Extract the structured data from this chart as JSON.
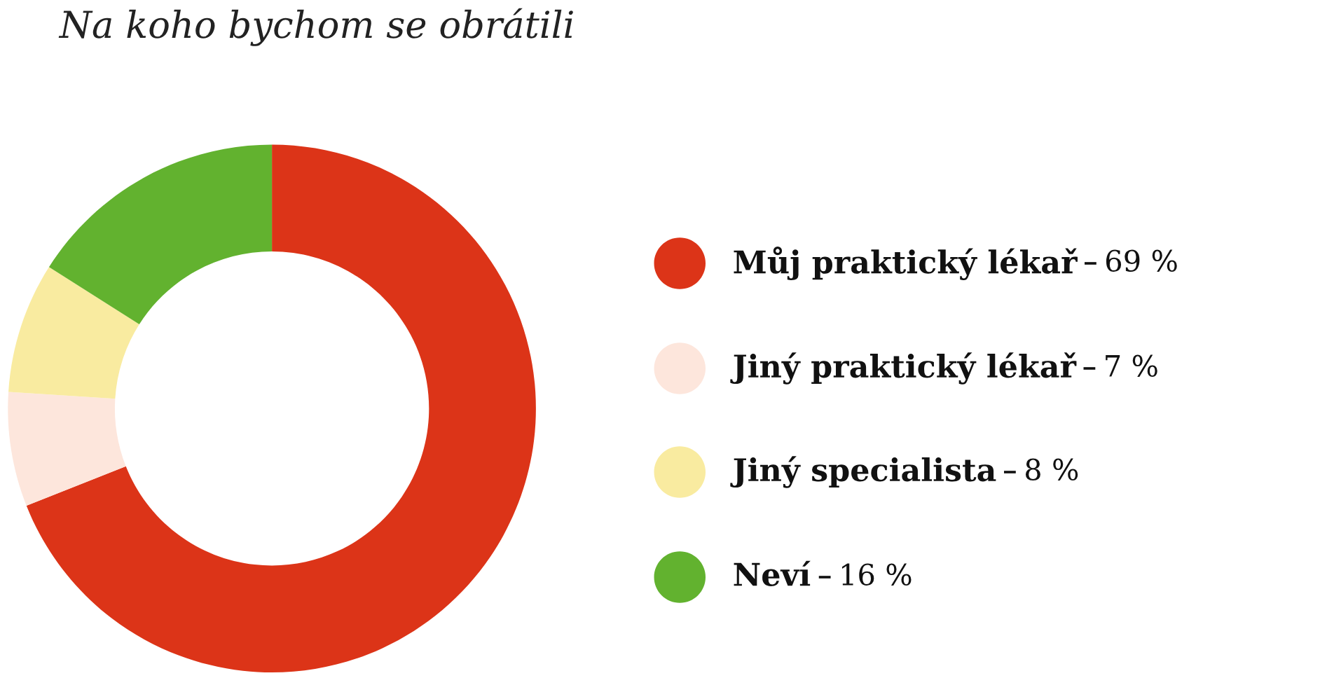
{
  "chart_data": {
    "type": "donut",
    "title": "Na koho bychom se obrátili",
    "categories": [
      "Můj praktický lékař",
      "Jiný praktický lékař",
      "Jiný specialista",
      "Neví"
    ],
    "values": [
      69,
      7,
      8,
      16
    ],
    "colors": [
      "#dc3418",
      "#fde6dc",
      "#f9eba0",
      "#62b22f"
    ],
    "value_labels": [
      "69 %",
      "7 %",
      "8 %",
      "16 %"
    ],
    "legend": "right"
  }
}
